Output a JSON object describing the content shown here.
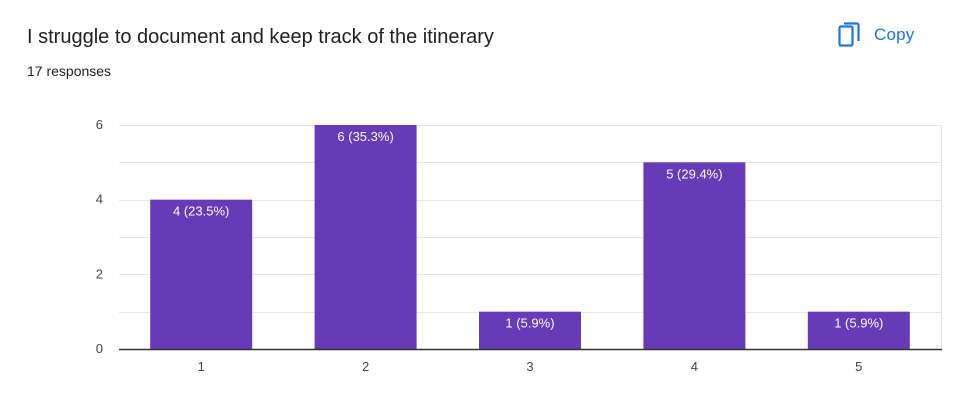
{
  "question": {
    "title": "I struggle to document and keep track of the itinerary",
    "responses_text": "17 responses"
  },
  "toolbar": {
    "copy_label": "Copy",
    "copy_icon": "copy-icon"
  },
  "colors": {
    "bar": "#673ab7",
    "accent": "#1a73e8",
    "grid": "#e6e6e6",
    "axis": "#333333"
  },
  "chart_data": {
    "type": "bar",
    "categories": [
      "1",
      "2",
      "3",
      "4",
      "5"
    ],
    "values": [
      4,
      6,
      1,
      5,
      1
    ],
    "data_labels": [
      "4 (23.5%)",
      "6 (35.3%)",
      "1 (5.9%)",
      "5 (29.4%)",
      "1 (5.9%)"
    ],
    "y_ticks": [
      "0",
      "2",
      "4",
      "6"
    ],
    "ylim": [
      0,
      6
    ],
    "grid": true,
    "legend": "none",
    "title": "",
    "xlabel": "",
    "ylabel": ""
  }
}
